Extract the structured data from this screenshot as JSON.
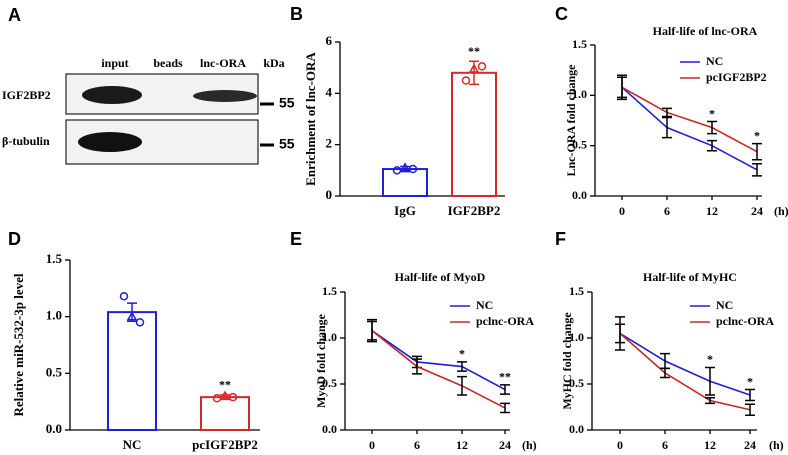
{
  "blot": {
    "panel_label": "A",
    "lanes": [
      "input",
      "beads",
      "lnc-ORA"
    ],
    "unit": "kDa",
    "rows": [
      "IGF2BP2",
      "β-tubulin"
    ],
    "markers": [
      55,
      55
    ]
  },
  "chart_data": [
    {
      "type": "bar",
      "panel_label": "B",
      "ylabel": "Enrichment of lnc-ORA",
      "categories": [
        "IgG",
        "IGF2BP2"
      ],
      "values": [
        1.05,
        4.8
      ],
      "errors": [
        0.1,
        0.45
      ],
      "points": [
        [
          1.0,
          1.1,
          1.05
        ],
        [
          4.5,
          4.95,
          5.05
        ]
      ],
      "colors": [
        "#1f1fd6",
        "#d62828"
      ],
      "significance": [
        null,
        "**"
      ],
      "ylim": [
        0,
        6
      ],
      "yticks": [
        0,
        2,
        4,
        6
      ]
    },
    {
      "type": "line",
      "panel_label": "C",
      "title": "Half-life of lnc-ORA",
      "ylabel": "Lnc-ORA fold change",
      "xlabel": "(h)",
      "categories": [
        "0",
        "6",
        "12",
        "24"
      ],
      "series": [
        {
          "name": "NC",
          "color": "#1f1fd6",
          "values": [
            1.08,
            0.68,
            0.5,
            0.26
          ],
          "errors": [
            0.12,
            0.1,
            0.05,
            0.06
          ]
        },
        {
          "name": "pcIGF2BP2",
          "color": "#c62828",
          "values": [
            1.08,
            0.83,
            0.68,
            0.44
          ],
          "errors": [
            0.1,
            0.04,
            0.06,
            0.08
          ]
        }
      ],
      "significance": [
        null,
        null,
        "*",
        "*"
      ],
      "ylim": [
        0,
        1.5
      ],
      "yticks": [
        {
          "value": 0,
          "label": "0.0"
        },
        {
          "value": 0.5,
          "label": "0.5"
        },
        {
          "value": 1,
          "label": "1.0"
        },
        {
          "value": 1.5,
          "label": "1.5"
        }
      ]
    },
    {
      "type": "bar",
      "panel_label": "D",
      "ylabel": "Relative miR-532-3p  level",
      "categories": [
        "NC",
        "pcIGF2BP2"
      ],
      "values": [
        1.04,
        0.29
      ],
      "errors": [
        0.08,
        0.02
      ],
      "points": [
        [
          1.18,
          1.0,
          0.95
        ],
        [
          0.28,
          0.3,
          0.29
        ]
      ],
      "colors": [
        "#1f1fd6",
        "#d62828"
      ],
      "significance": [
        null,
        "**"
      ],
      "ylim": [
        0,
        1.5
      ],
      "yticks": [
        {
          "value": 0,
          "label": "0.0"
        },
        {
          "value": 0.5,
          "label": "0.5"
        },
        {
          "value": 1,
          "label": "1.0"
        },
        {
          "value": 1.5,
          "label": "1.5"
        }
      ]
    },
    {
      "type": "line",
      "panel_label": "E",
      "title": "Half-life of MyoD",
      "ylabel": "MyoD fold change",
      "xlabel": "(h)",
      "categories": [
        "0",
        "6",
        "12",
        "24"
      ],
      "series": [
        {
          "name": "NC",
          "color": "#1f1fd6",
          "values": [
            1.08,
            0.74,
            0.69,
            0.44
          ],
          "errors": [
            0.12,
            0.06,
            0.05,
            0.05
          ]
        },
        {
          "name": "pclnc-ORA",
          "color": "#c62828",
          "values": [
            1.08,
            0.69,
            0.48,
            0.24
          ],
          "errors": [
            0.1,
            0.08,
            0.1,
            0.05
          ]
        }
      ],
      "significance": [
        null,
        null,
        "*",
        "**"
      ],
      "ylim": [
        0,
        1.5
      ],
      "yticks": [
        {
          "value": 0,
          "label": "0.0"
        },
        {
          "value": 0.5,
          "label": "0.5"
        },
        {
          "value": 1,
          "label": "1.0"
        },
        {
          "value": 1.5,
          "label": "1.5"
        }
      ]
    },
    {
      "type": "line",
      "panel_label": "F",
      "title": "Half-life of MyHC",
      "ylabel": "MyHC fold change",
      "xlabel": "(h)",
      "categories": [
        "0",
        "6",
        "12",
        "24"
      ],
      "series": [
        {
          "name": "NC",
          "color": "#1f1fd6",
          "values": [
            1.05,
            0.75,
            0.53,
            0.38
          ],
          "errors": [
            0.18,
            0.08,
            0.15,
            0.06
          ]
        },
        {
          "name": "pclnc-ORA",
          "color": "#c62828",
          "values": [
            1.05,
            0.62,
            0.32,
            0.22
          ],
          "errors": [
            0.1,
            0.05,
            0.03,
            0.06
          ]
        }
      ],
      "significance": [
        null,
        null,
        "*",
        "*"
      ],
      "ylim": [
        0,
        1.5
      ],
      "yticks": [
        {
          "value": 0,
          "label": "0.0"
        },
        {
          "value": 0.5,
          "label": "0.5"
        },
        {
          "value": 1,
          "label": "1.0"
        },
        {
          "value": 1.5,
          "label": "1.5"
        }
      ]
    }
  ]
}
